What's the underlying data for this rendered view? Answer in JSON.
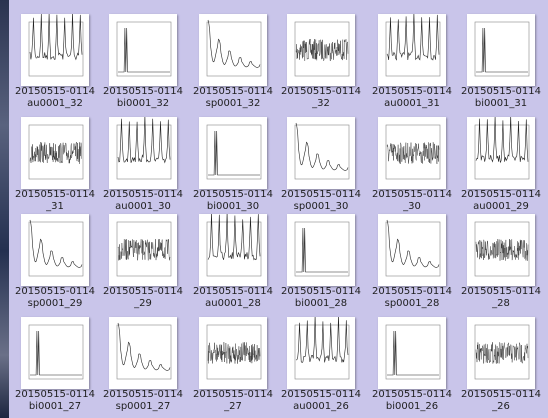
{
  "files": [
    {
      "line1": "20150515-0114",
      "line2": "au0001_32"
    },
    {
      "line1": "20150515-0114",
      "line2": "bi0001_32"
    },
    {
      "line1": "20150515-0114",
      "line2": "sp0001_32"
    },
    {
      "line1": "20150515-0114",
      "line2": "_32"
    },
    {
      "line1": "20150515-0114",
      "line2": "au0001_31"
    },
    {
      "line1": "20150515-0114",
      "line2": "bi0001_31"
    },
    {
      "line1": "20150515-0114",
      "line2": "_31"
    },
    {
      "line1": "20150515-0114",
      "line2": "au0001_30"
    },
    {
      "line1": "20150515-0114",
      "line2": "bi0001_30"
    },
    {
      "line1": "20150515-0114",
      "line2": "sp0001_30"
    },
    {
      "line1": "20150515-0114",
      "line2": "_30"
    },
    {
      "line1": "20150515-0114",
      "line2": "au0001_29"
    },
    {
      "line1": "20150515-0114",
      "line2": "sp0001_29"
    },
    {
      "line1": "20150515-0114",
      "line2": "_29"
    },
    {
      "line1": "20150515-0114",
      "line2": "au0001_28"
    },
    {
      "line1": "20150515-0114",
      "line2": "bi0001_28"
    },
    {
      "line1": "20150515-0114",
      "line2": "sp0001_28"
    },
    {
      "line1": "20150515-0114",
      "line2": "_28"
    },
    {
      "line1": "20150515-0114",
      "line2": "bi0001_27"
    },
    {
      "line1": "20150515-0114",
      "line2": "sp0001_27"
    },
    {
      "line1": "20150515-0114",
      "line2": "_27"
    },
    {
      "line1": "20150515-0114",
      "line2": "au0001_26"
    },
    {
      "line1": "20150515-0114",
      "line2": "bi0001_26"
    },
    {
      "line1": "20150515-0114",
      "line2": "_26"
    }
  ]
}
